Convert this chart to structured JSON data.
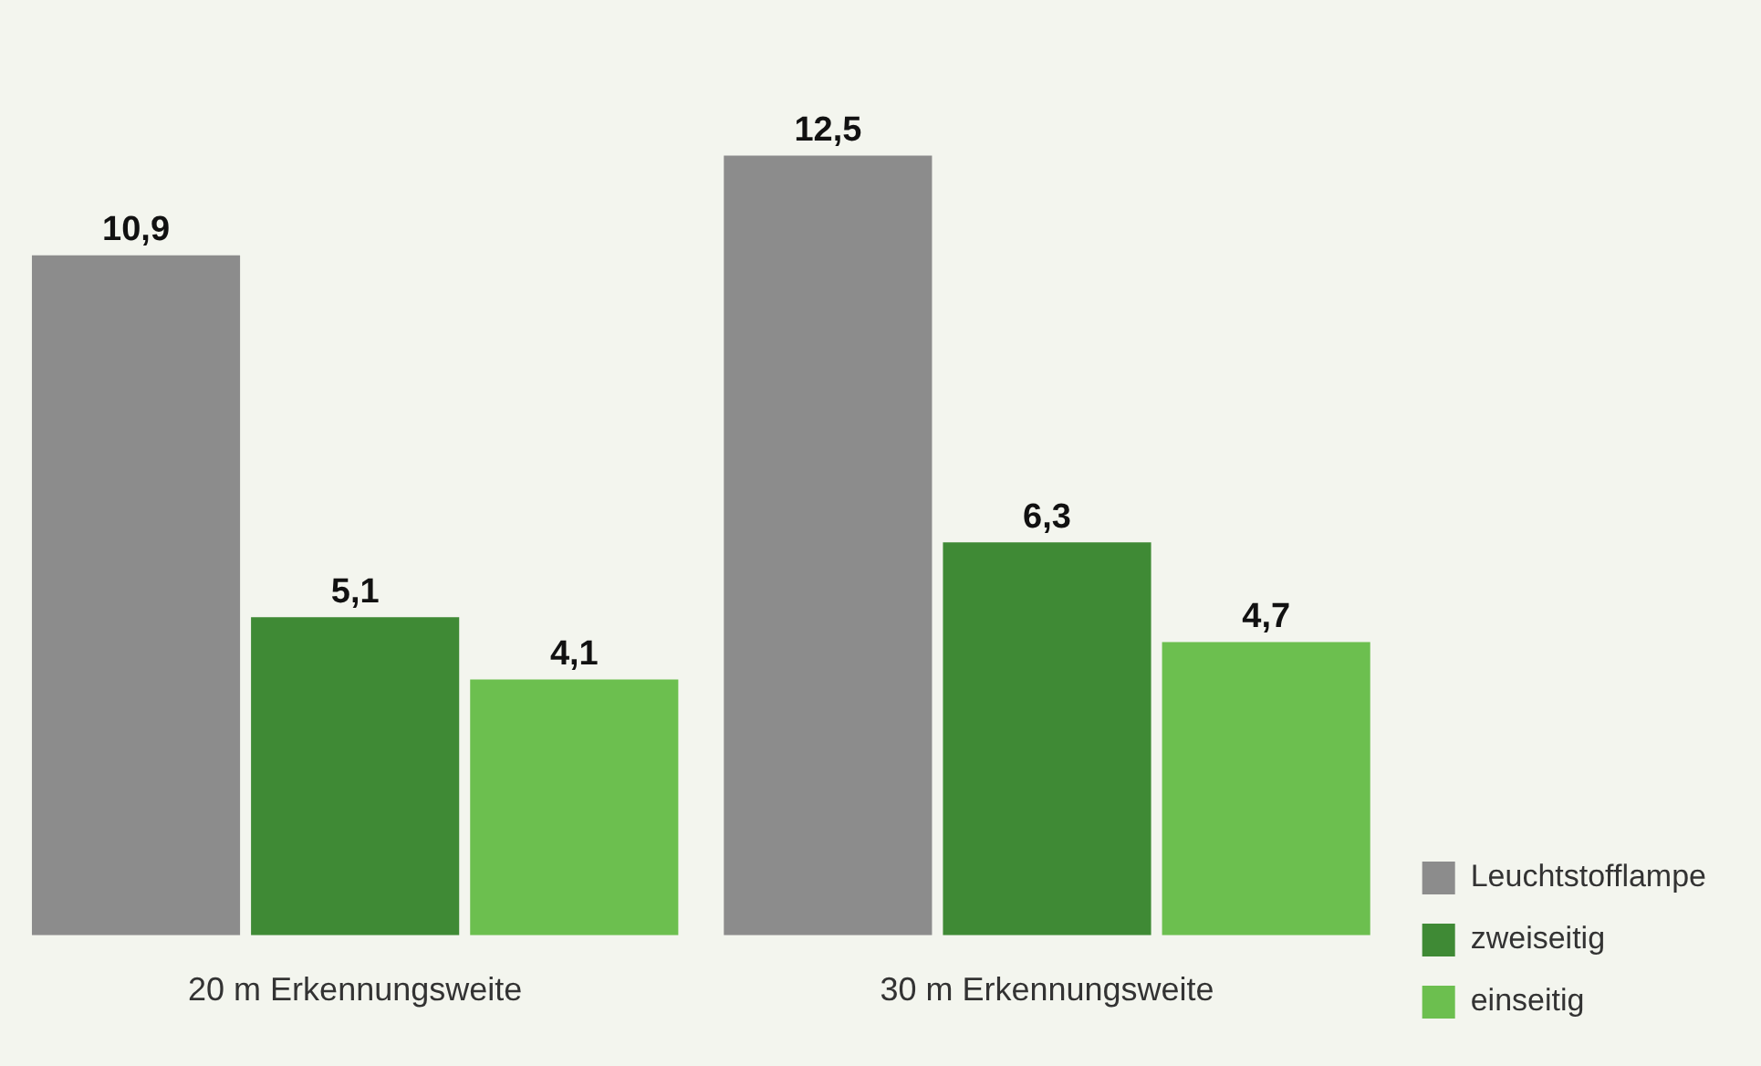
{
  "chart_data": {
    "type": "bar",
    "categories": [
      "20 m Erkennungsweite",
      "30 m Erkennungsweite"
    ],
    "series": [
      {
        "name": "Leuchtstofflampe",
        "color": "#8c8c8c",
        "values": [
          10.9,
          12.5
        ],
        "value_labels": [
          "10,9",
          "12,5"
        ]
      },
      {
        "name": "zweiseitig",
        "color": "#3f8a35",
        "values": [
          5.1,
          6.3
        ],
        "value_labels": [
          "5,1",
          "6,3"
        ]
      },
      {
        "name": "einseitig",
        "color": "#6cbf4f",
        "values": [
          4.1,
          4.7
        ],
        "value_labels": [
          "4,1",
          "4,7"
        ]
      }
    ],
    "legend": "bottom right",
    "grid": false
  }
}
